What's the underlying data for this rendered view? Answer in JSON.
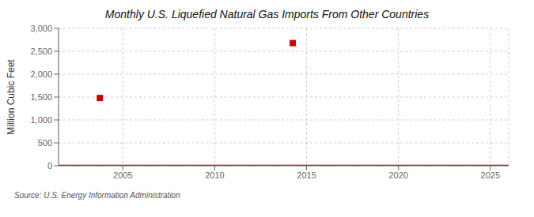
{
  "chart_data": {
    "type": "scatter",
    "title": "Monthly U.S. Liquefied Natural Gas Imports From Other Countries",
    "y_label": "Million Cubic Feet",
    "annotation": "Source: U.S. Energy Information Administration",
    "xlim": [
      2001.5,
      2026
    ],
    "xticks": [
      2005,
      2010,
      2015,
      2020,
      2025
    ],
    "ylim": [
      0,
      3000
    ],
    "yticks": [
      0,
      500,
      {
        "value": 1000,
        "label": "1,000"
      },
      {
        "value": 1500,
        "label": "1,500"
      },
      {
        "value": 2000,
        "label": "2,000"
      },
      {
        "value": 2500,
        "label": "2,500"
      },
      {
        "value": 3000,
        "label": "3,000"
      }
    ],
    "grid": true,
    "series": [
      {
        "type": "line",
        "color": "#9b0000",
        "x": [
          2001.5,
          2026
        ],
        "values": [
          0,
          0
        ]
      },
      {
        "type": "scatter",
        "color": "#cc0000",
        "marker": "square",
        "x": [
          2003.75,
          2014.25
        ],
        "values": [
          1480,
          2680
        ]
      }
    ]
  }
}
